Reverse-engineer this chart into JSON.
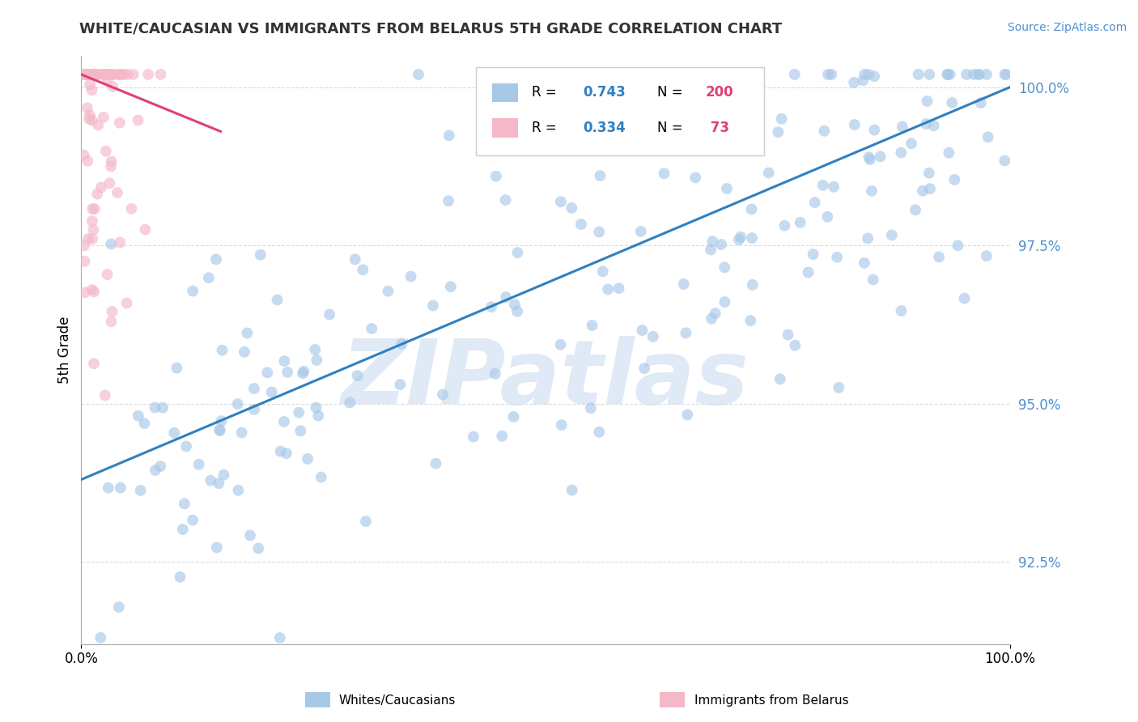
{
  "title": "WHITE/CAUCASIAN VS IMMIGRANTS FROM BELARUS 5TH GRADE CORRELATION CHART",
  "source": "Source: ZipAtlas.com",
  "ylabel": "5th Grade",
  "xlim": [
    0.0,
    1.0
  ],
  "ylim": [
    0.912,
    1.005
  ],
  "yticks": [
    0.925,
    0.95,
    0.975,
    1.0
  ],
  "ytick_labels": [
    "92.5%",
    "95.0%",
    "97.5%",
    "100.0%"
  ],
  "xtick_labels": [
    "0.0%",
    "100.0%"
  ],
  "blue_scatter_color": "#a8c8e8",
  "pink_scatter_color": "#f4b8c8",
  "blue_line_color": "#3080c0",
  "pink_line_color": "#e04070",
  "watermark": "ZIPatlas",
  "watermark_color": "#c8d8f0",
  "background_color": "#ffffff",
  "grid_color": "#cccccc",
  "title_color": "#333333",
  "source_color": "#5090d0",
  "legend_r_color": "#3080c0",
  "legend_n_color": "#e04070",
  "blue_R": "0.743",
  "blue_N": "200",
  "pink_R": "0.334",
  "pink_N": "73",
  "blue_line_x": [
    0.0,
    1.0
  ],
  "blue_line_y": [
    0.938,
    1.0
  ],
  "pink_line_x": [
    0.0,
    0.15
  ],
  "pink_line_y": [
    1.002,
    0.993
  ]
}
